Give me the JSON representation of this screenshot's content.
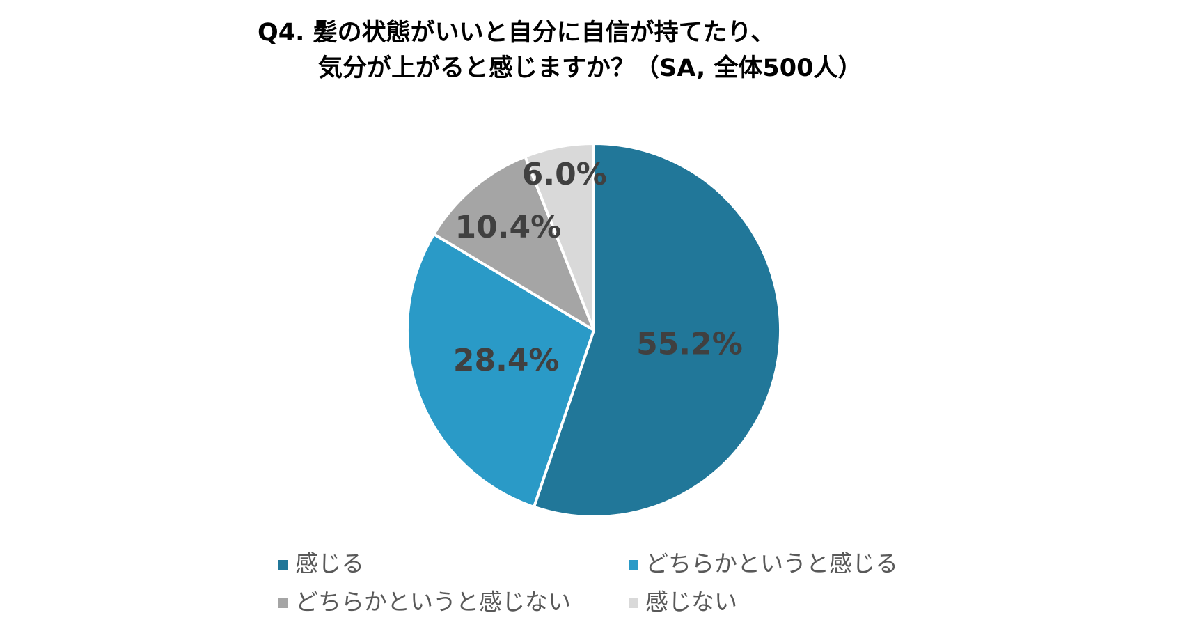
{
  "chart_data": {
    "type": "pie",
    "title": [
      "Q4. 髪の状態がいいと自分に自信が持てたり、",
      "気分が上がると感じますか？（SA, 全体500人）"
    ],
    "categories": [
      "感じる",
      "どちらかというと感じる",
      "どちらかというと感じない",
      "感じない"
    ],
    "values": [
      55.2,
      28.4,
      10.4,
      6.0
    ],
    "value_labels": [
      "55.2%",
      "28.4%",
      "10.4%",
      "6.0%"
    ],
    "colors": [
      "#217799",
      "#2a9ac7",
      "#a5a5a5",
      "#d9d9d9"
    ],
    "legend": "bottom"
  }
}
